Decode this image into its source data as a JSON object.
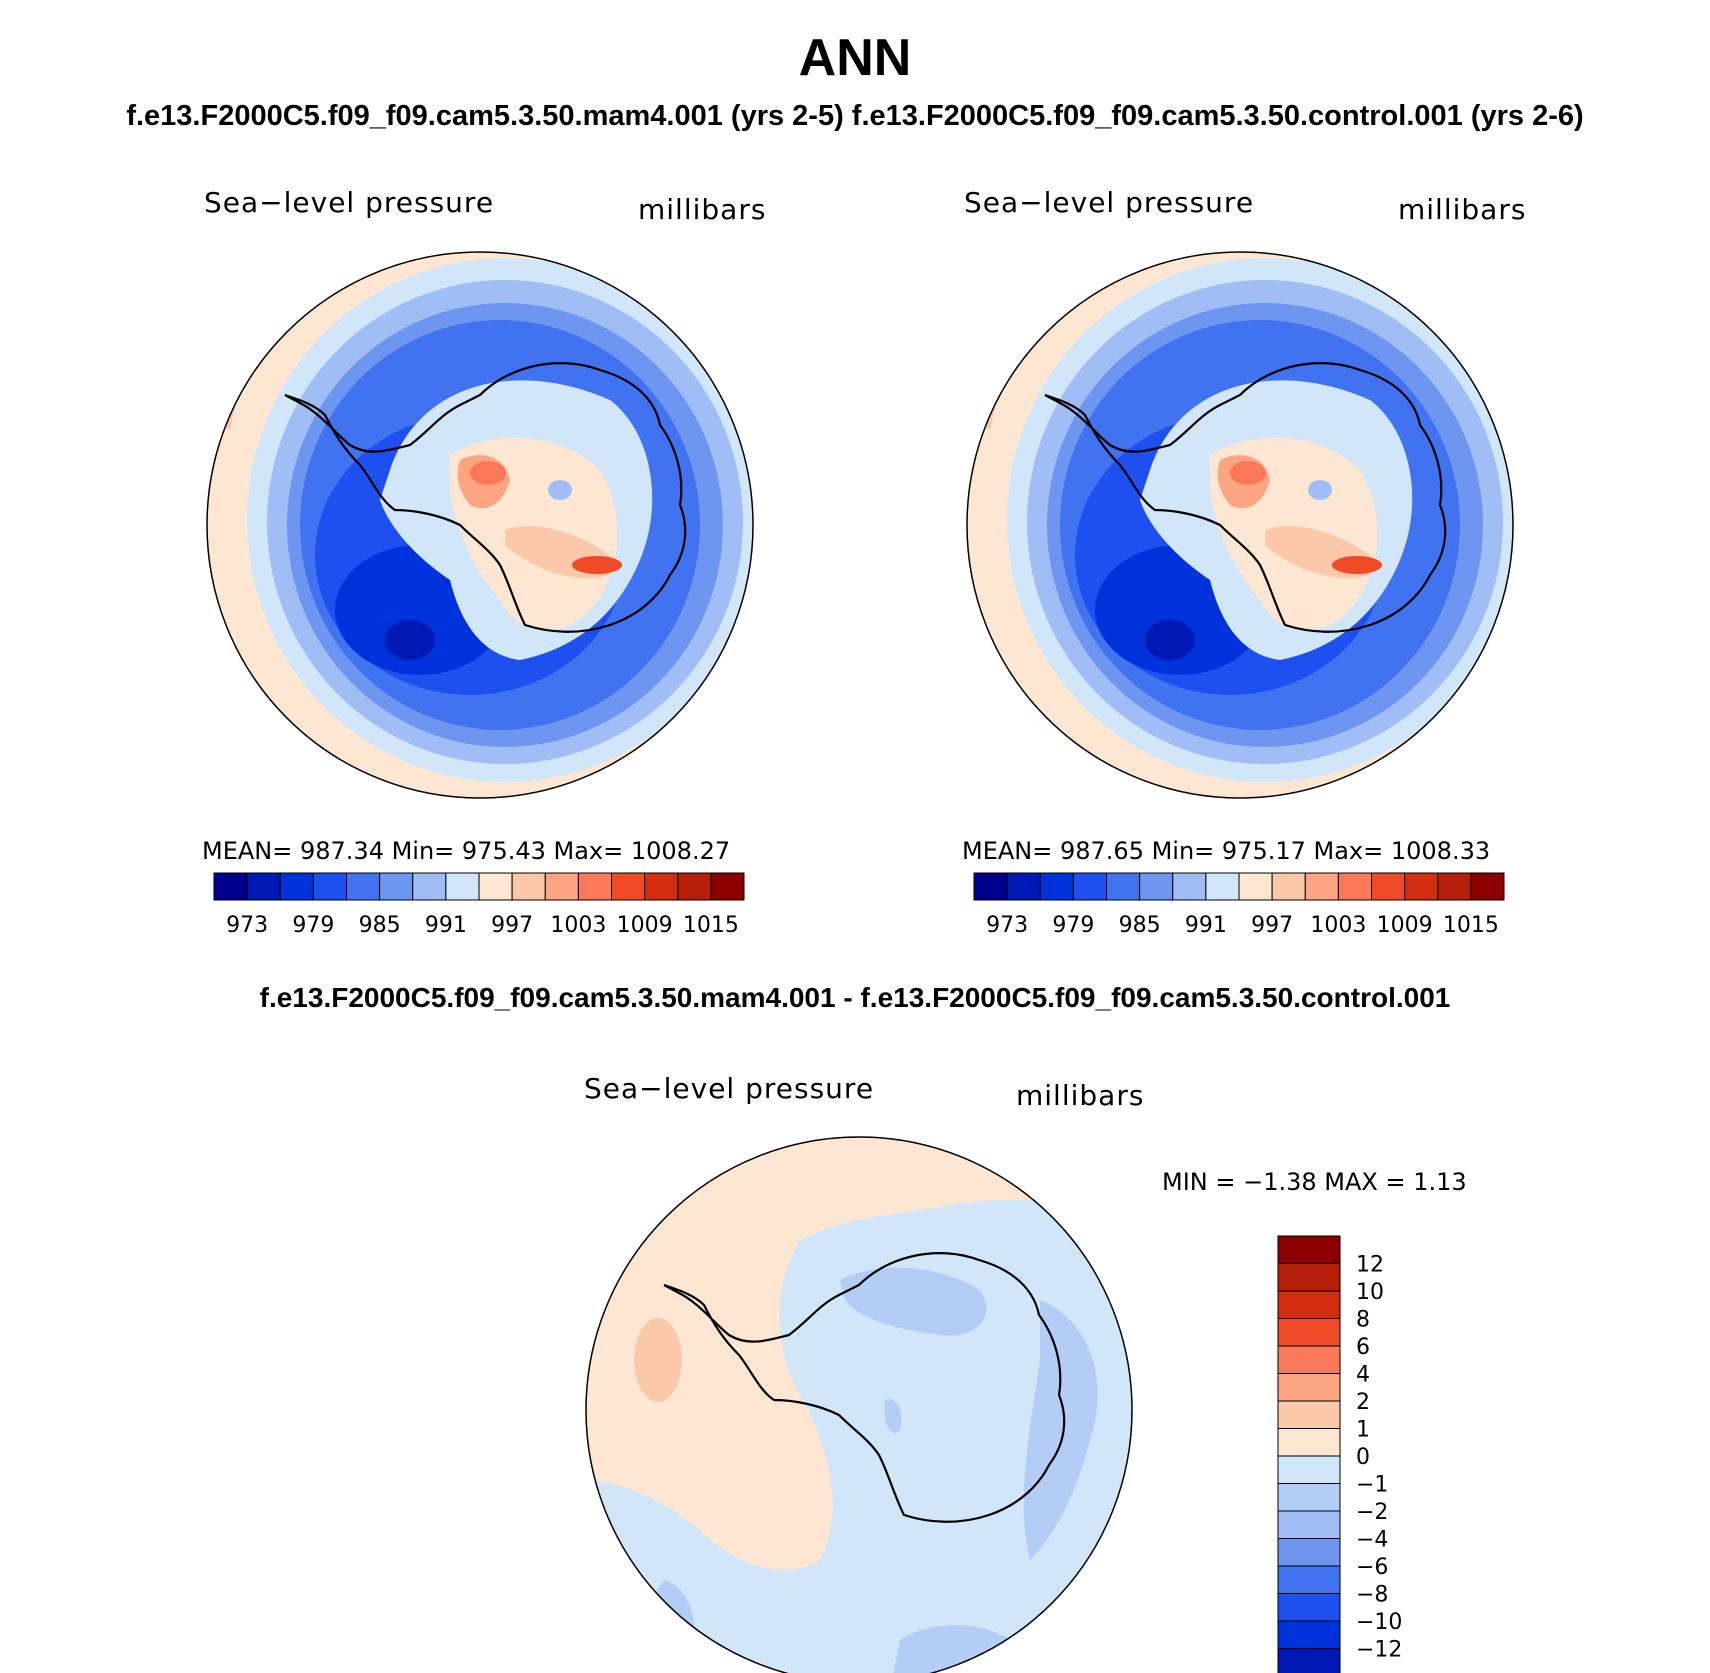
{
  "title": "ANN",
  "case_title": "f.e13.F2000C5.f09_f09.cam5.3.50.mam4.001 (yrs 2-5) f.e13.F2000C5.f09_f09.cam5.3.50.control.001 (yrs 2-6)",
  "diff_title": "f.e13.F2000C5.f09_f09.cam5.3.50.mam4.001 - f.e13.F2000C5.f09_f09.cam5.3.50.control.001",
  "panels": [
    {
      "variable": "Sea−level pressure",
      "units": "millibars",
      "stats_text": "MEAN=  987.34   Min=  975.43   Max=  1008.27",
      "mean": 987.34,
      "min": 975.43,
      "max": 1008.27
    },
    {
      "variable": "Sea−level pressure",
      "units": "millibars",
      "stats_text": "MEAN=  987.65   Min=  975.17   Max=  1008.33",
      "mean": 987.65,
      "min": 975.17,
      "max": 1008.33
    }
  ],
  "diff_panel": {
    "variable": "Sea−level pressure",
    "units": "millibars",
    "stats_text": "MIN  =   −1.38  MAX  =     1.13",
    "min": -1.38,
    "max": 1.13
  },
  "colorbar_main": {
    "colors": [
      "#00008c",
      "#0019b4",
      "#0032dc",
      "#1e50f0",
      "#4173f0",
      "#6e96f0",
      "#a0bef5",
      "#d2e6fa",
      "#fde6d2",
      "#fcc8aa",
      "#fca582",
      "#fc785a",
      "#f04b28",
      "#d22d0f",
      "#b41e0a",
      "#8c0000"
    ],
    "tick_labels": [
      "973",
      "979",
      "985",
      "991",
      "997",
      "1003",
      "1009",
      "1015"
    ]
  },
  "colorbar_diff": {
    "colors": [
      "#8c0000",
      "#b41e0a",
      "#d22d0f",
      "#f04b28",
      "#fc785a",
      "#fca582",
      "#fcc8aa",
      "#fde6d2",
      "#d2e6fa",
      "#b4cdf7",
      "#a0bef5",
      "#6e96f0",
      "#4173f0",
      "#1e50f0",
      "#0032dc",
      "#0019b4"
    ],
    "tick_labels": [
      "12",
      "10",
      "8",
      "6",
      "4",
      "2",
      "1",
      "0",
      "−1",
      "−2",
      "−4",
      "−6",
      "−8",
      "−10",
      "−12"
    ]
  }
}
